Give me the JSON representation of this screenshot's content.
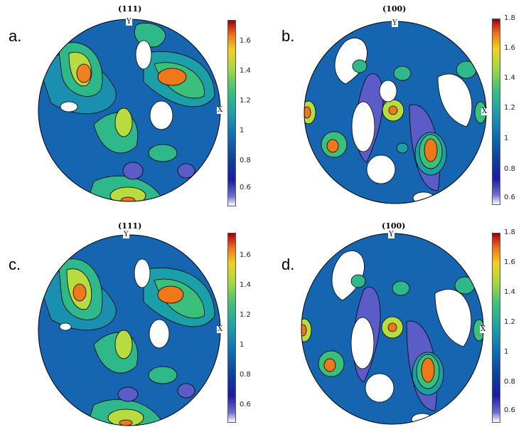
{
  "panels": [
    {
      "letter": "a.",
      "title": "(111)",
      "y_label": "Y",
      "x_label": "X",
      "ticks": [
        "1.6",
        "1.4",
        "1.2",
        "1",
        "0.8",
        "0.6"
      ]
    },
    {
      "letter": "b.",
      "title": "(100)",
      "y_label": "Y",
      "x_label": "X",
      "ticks": [
        "1.8",
        "1.6",
        "1.4",
        "1.2",
        "1",
        "0.8",
        "0.6"
      ]
    },
    {
      "letter": "c.",
      "title": "(111)",
      "y_label": "Y",
      "x_label": "X",
      "ticks": [
        "1.6",
        "1.4",
        "1.2",
        "1",
        "0.8",
        "0.6"
      ]
    },
    {
      "letter": "d.",
      "title": "(100)",
      "y_label": "Y",
      "x_label": "X",
      "ticks": [
        "1.8",
        "1.6",
        "1.4",
        "1.2",
        "1",
        "0.8",
        "0.6"
      ]
    }
  ],
  "colors": {
    "low": "#ffffff",
    "mid_low": "#1a1aa8",
    "mid": "#1ca0a8",
    "mid_high": "#a8d840",
    "high": "#900000"
  }
}
